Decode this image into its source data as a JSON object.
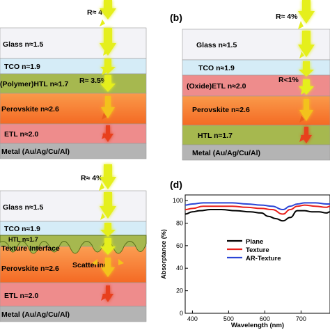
{
  "panels": {
    "a": {
      "reflection": "R≈ 4%",
      "reflection_htl": "R≈ 3.5%",
      "layers": [
        "Glass  n≈1.5",
        "TCO   n≈1.9",
        "(Polymer)HTL n≈1.7",
        "Perovskite n≈2.6",
        "ETL  n≈2.0",
        "Metal (Au/Ag/Cu/Al)"
      ]
    },
    "b": {
      "label": "(b)",
      "reflection": "R≈ 4%",
      "reflection_etl": "R<1%",
      "layers": [
        "Glass  n≈1.5",
        "TCO   n≈1.9",
        "(Oxide)ETL  n≈2.0",
        "Perovskite  n≈2.6",
        "HTL     n≈1.7",
        "Metal (Au/Ag/Cu/Al)"
      ]
    },
    "c": {
      "reflection": "R≈ 4%",
      "layers": [
        "Glass  n≈1.5",
        "TCO   n≈1.9",
        "HTL   n≈1.7",
        "Texture Interface",
        "Perovskite  n≈2.6",
        "ETL   n≈2.0",
        "Metal (Au/Ag/Cu/Al)"
      ],
      "scattering": "Scattering"
    },
    "d": {
      "label": "(d)",
      "chart_data": {
        "type": "line",
        "xlabel": "Wavelength (nm)",
        "ylabel": "Absorptance (%)",
        "xlim": [
          380,
          780
        ],
        "ylim": [
          0,
          105
        ],
        "xticks": [
          400,
          500,
          600,
          700
        ],
        "yticks": [
          0,
          20,
          40,
          60,
          80,
          100
        ],
        "legend_position": "center-right",
        "series": [
          {
            "name": "Plane",
            "color": "#000000",
            "x": [
              380,
              400,
              420,
              450,
              480,
              520,
              560,
              590,
              610,
              630,
              650,
              670,
              690,
              710,
              730,
              750,
              770,
              780
            ],
            "y": [
              88,
              90,
              91,
              92,
              92,
              91,
              90,
              89,
              86,
              84,
              82,
              85,
              91,
              91,
              90,
              90,
              89,
              90
            ]
          },
          {
            "name": "Texture",
            "color": "#e8201c",
            "x": [
              380,
              400,
              430,
              470,
              510,
              550,
              590,
              620,
              650,
              670,
              690,
              710,
              740,
              770,
              780
            ],
            "y": [
              92,
              93,
              95,
              95,
              95,
              94,
              93,
              92,
              88,
              92,
              95,
              96,
              95,
              94,
              95
            ]
          },
          {
            "name": "AR-Texture",
            "color": "#2a44d6",
            "x": [
              380,
              400,
              430,
              470,
              510,
              550,
              590,
              620,
              650,
              670,
              690,
              710,
              740,
              770,
              780
            ],
            "y": [
              96,
              97,
              98,
              98,
              98,
              97,
              96,
              95,
              92,
              95,
              97,
              98,
              98,
              97,
              97
            ]
          }
        ]
      }
    }
  },
  "colors": {
    "glass": "#f3f3f7",
    "tco": "#d5ecf7",
    "htl": "#a6b84f",
    "perovskite": "#f7823a",
    "etl": "#ee8c8c",
    "metal": "#b4b4b4",
    "arrow": "#e5ef1b"
  }
}
